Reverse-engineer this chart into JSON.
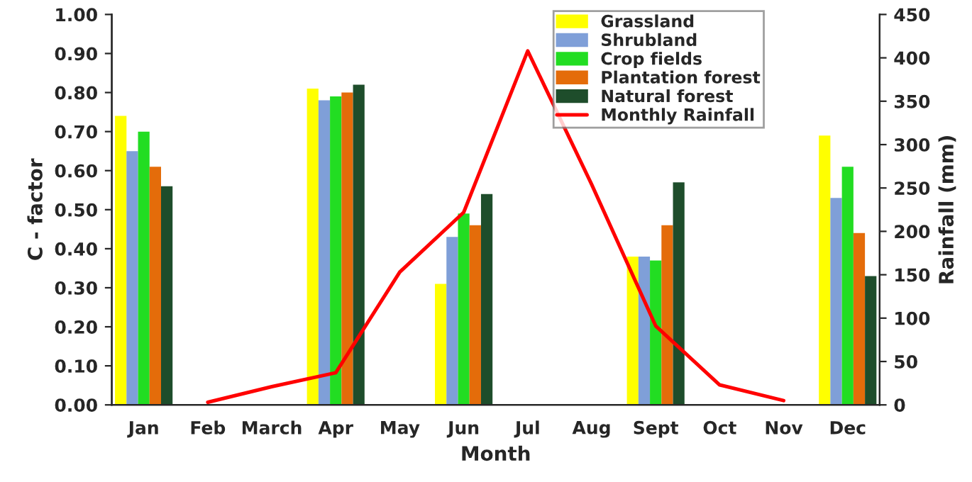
{
  "chart_data": {
    "type": "bar",
    "xlabel": "Month",
    "ylabel": "C - factor",
    "y2label": "Rainfall (mm)",
    "categories": [
      "Jan",
      "Feb",
      "March",
      "Apr",
      "May",
      "Jun",
      "Jul",
      "Aug",
      "Sept",
      "Oct",
      "Nov",
      "Dec"
    ],
    "series": [
      {
        "name": "Grassland",
        "color": "#ffff00",
        "values": [
          0.74,
          null,
          null,
          0.81,
          null,
          0.31,
          null,
          null,
          0.38,
          null,
          null,
          0.69
        ]
      },
      {
        "name": "Shrubland",
        "color": "#7f9fd8",
        "values": [
          0.65,
          null,
          null,
          0.78,
          null,
          0.43,
          null,
          null,
          0.38,
          null,
          null,
          0.53
        ]
      },
      {
        "name": "Crop fields",
        "color": "#22dd22",
        "values": [
          0.7,
          null,
          null,
          0.79,
          null,
          0.49,
          null,
          null,
          0.37,
          null,
          null,
          0.61
        ]
      },
      {
        "name": "Plantation forest",
        "color": "#e46c0a",
        "values": [
          0.61,
          null,
          null,
          0.8,
          null,
          0.46,
          null,
          null,
          0.46,
          null,
          null,
          0.44
        ]
      },
      {
        "name": "Natural forest",
        "color": "#1e4d2b",
        "values": [
          0.56,
          null,
          null,
          0.82,
          null,
          0.54,
          null,
          null,
          0.57,
          null,
          null,
          0.33
        ]
      },
      {
        "name": "Monthly Rainfall",
        "color": "#ff0000",
        "type": "line",
        "axis": "y2",
        "values": [
          null,
          3,
          21,
          37,
          153,
          222,
          408,
          254,
          91,
          23,
          5,
          null
        ]
      }
    ],
    "ylim": [
      0,
      1
    ],
    "yticks": [
      {
        "value": 0,
        "label": "0.00"
      },
      {
        "value": 0.1,
        "label": "0.10"
      },
      {
        "value": 0.2,
        "label": "0.20"
      },
      {
        "value": 0.3,
        "label": "0.30"
      },
      {
        "value": 0.4,
        "label": "0.40"
      },
      {
        "value": 0.5,
        "label": "0.50"
      },
      {
        "value": 0.6,
        "label": "0.60"
      },
      {
        "value": 0.7,
        "label": "0.70"
      },
      {
        "value": 0.8,
        "label": "0.80"
      },
      {
        "value": 0.9,
        "label": "0.90"
      },
      {
        "value": 1,
        "label": "1.00"
      }
    ],
    "y2lim": [
      0,
      450
    ],
    "y2ticks": [
      0,
      50,
      100,
      150,
      200,
      250,
      300,
      350,
      400,
      450
    ],
    "legend": "top right",
    "grid": false
  }
}
